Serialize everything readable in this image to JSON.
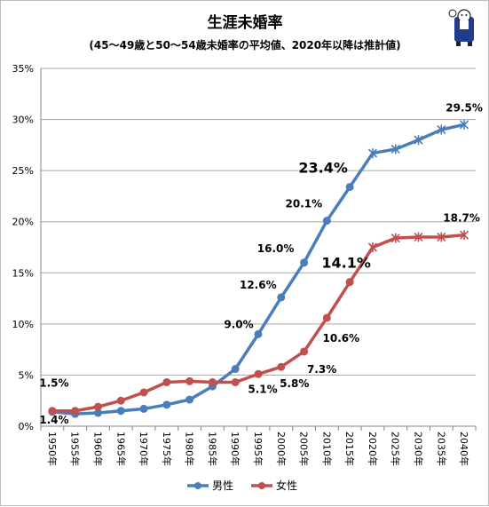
{
  "chart_data": {
    "type": "line",
    "title": "生涯未婚率",
    "subtitle": "(45〜49歳と50〜54歳未婚率の平均値、2020年以降は推計値)",
    "categories": [
      "1950年",
      "1955年",
      "1960年",
      "1965年",
      "1970年",
      "1975年",
      "1980年",
      "1985年",
      "1990年",
      "1995年",
      "2000年",
      "2005年",
      "2010年",
      "2015年",
      "2020年",
      "2025年",
      "2030年",
      "2035年",
      "2040年"
    ],
    "y_ticks": [
      "0%",
      "5%",
      "10%",
      "15%",
      "20%",
      "25%",
      "30%",
      "35%"
    ],
    "ylim": [
      0,
      35
    ],
    "grid": true,
    "legend_position": "bottom",
    "series": [
      {
        "name": "男性",
        "color": "#4a7ebb",
        "values": [
          1.4,
          1.2,
          1.3,
          1.5,
          1.7,
          2.1,
          2.6,
          3.9,
          5.6,
          9.0,
          12.6,
          16.0,
          20.1,
          23.4,
          26.7,
          27.1,
          28.0,
          29.0,
          29.5
        ]
      },
      {
        "name": "女性",
        "color": "#c0504d",
        "values": [
          1.5,
          1.5,
          1.9,
          2.5,
          3.3,
          4.3,
          4.4,
          4.3,
          4.3,
          5.1,
          5.8,
          7.3,
          10.6,
          14.1,
          17.5,
          18.4,
          18.5,
          18.5,
          18.7
        ]
      }
    ],
    "data_labels": [
      {
        "text": "1.4%",
        "series": 0,
        "index": 0,
        "big": false
      },
      {
        "text": "1.5%",
        "series": 1,
        "index": 0,
        "big": false
      },
      {
        "text": "9.0%",
        "series": 0,
        "index": 9,
        "big": false
      },
      {
        "text": "12.6%",
        "series": 0,
        "index": 10,
        "big": false
      },
      {
        "text": "16.0%",
        "series": 0,
        "index": 11,
        "big": false
      },
      {
        "text": "20.1%",
        "series": 0,
        "index": 12,
        "big": false
      },
      {
        "text": "23.4%",
        "series": 0,
        "index": 13,
        "big": true
      },
      {
        "text": "29.5%",
        "series": 0,
        "index": 18,
        "big": false
      },
      {
        "text": "5.1%",
        "series": 1,
        "index": 9,
        "big": false
      },
      {
        "text": "5.8%",
        "series": 1,
        "index": 10,
        "big": false
      },
      {
        "text": "7.3%",
        "series": 1,
        "index": 11,
        "big": false
      },
      {
        "text": "10.6%",
        "series": 1,
        "index": 12,
        "big": false
      },
      {
        "text": "14.1%",
        "series": 1,
        "index": 13,
        "big": true
      },
      {
        "text": "18.7%",
        "series": 1,
        "index": 18,
        "big": false
      }
    ]
  }
}
